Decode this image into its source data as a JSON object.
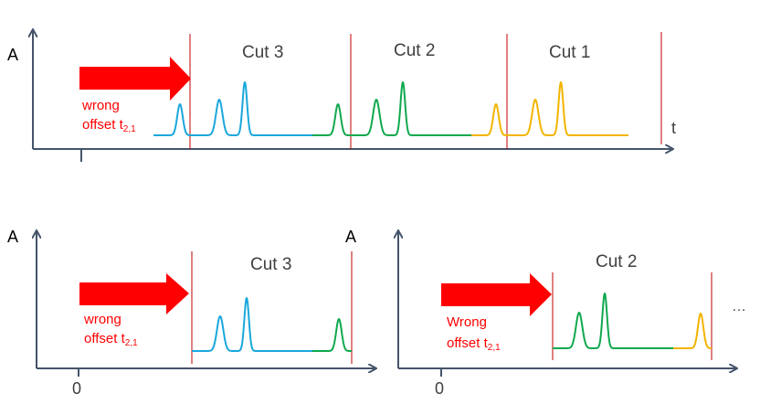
{
  "colors": {
    "axis": "#44546a",
    "cut_line": "#c00000",
    "arrow": "#ff0000",
    "red_text": "#ff0000",
    "cut3": "#1aa7dc",
    "cut2": "#10a84e",
    "cut1": "#f2b400",
    "text": "#404040"
  },
  "top_panel": {
    "y_axis_label": "A",
    "x_axis_label": "t",
    "cut_labels": [
      "Cut 3",
      "Cut 2",
      "Cut 1"
    ],
    "offset_line1": "wrong",
    "offset_line2_main": "offset t",
    "offset_line2_sub": "2,1"
  },
  "bottom_left_panel": {
    "y_axis_label": "A",
    "zero_label": "0",
    "cut_label": "Cut 3",
    "offset_line1": "wrong",
    "offset_line2_main": "offset t",
    "offset_line2_sub": "2,1"
  },
  "bottom_right_panel": {
    "y_axis_label": "A",
    "zero_label": "0",
    "cut_label": "Cut 2",
    "offset_line1": "Wrong",
    "offset_line2_main": "offset t",
    "offset_line2_sub": "2,1",
    "ellipsis": "…"
  }
}
